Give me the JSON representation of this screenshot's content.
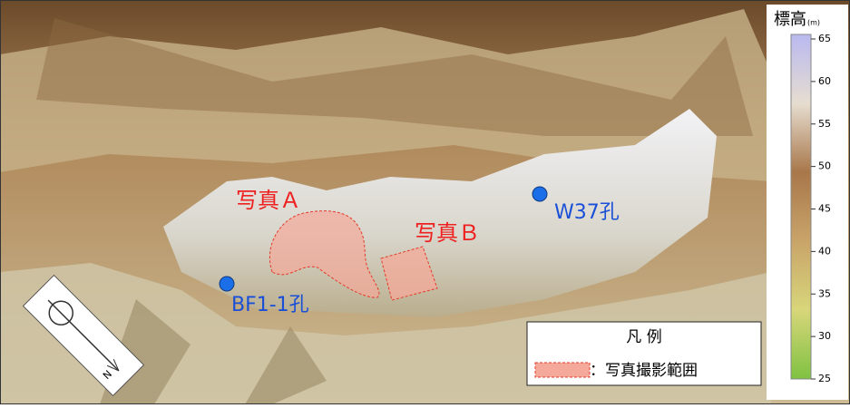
{
  "map": {
    "labels": {
      "photo_a": "写真Ａ",
      "photo_b": "写真Ｂ",
      "w37": "W37孔",
      "bf1": "BF1-1孔"
    },
    "north": "N",
    "legend": {
      "title": "凡 例",
      "item": "：写真撮影範囲"
    },
    "colorbar": {
      "title": "標高",
      "unit": "(m)",
      "range": [
        25,
        65
      ],
      "ticks": [
        65,
        60,
        55,
        50,
        45,
        40,
        35,
        30,
        25
      ]
    }
  }
}
